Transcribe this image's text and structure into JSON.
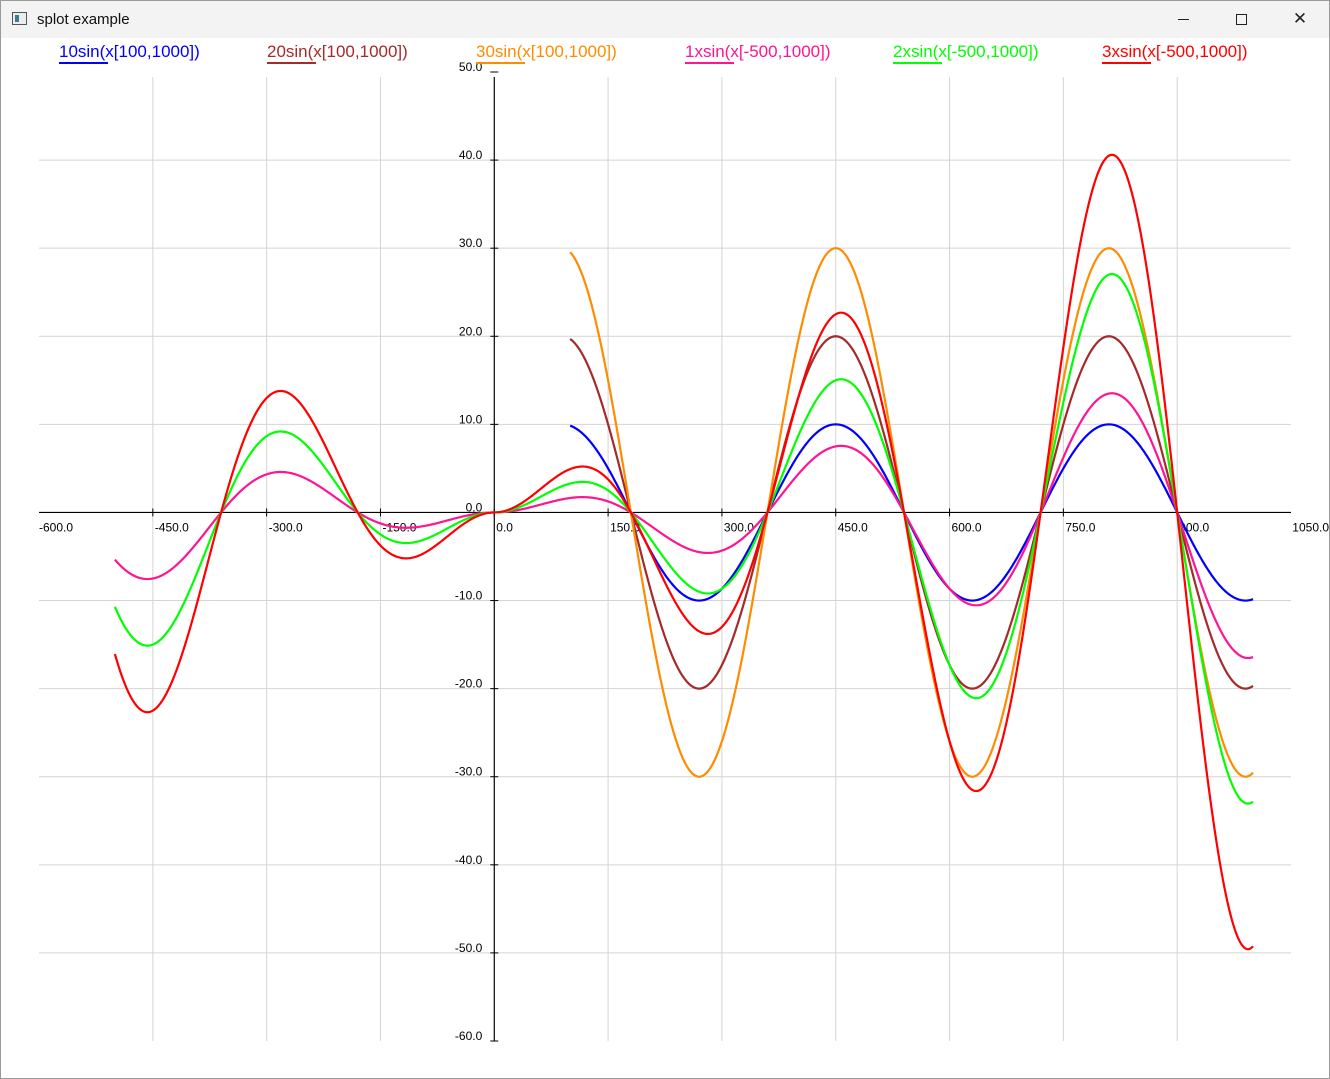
{
  "window": {
    "title": "splot example"
  },
  "controls": {
    "minimize": "minimize",
    "maximize": "maximize",
    "close": "close"
  },
  "chart_data": {
    "type": "line",
    "title": "",
    "xlabel": "",
    "ylabel": "",
    "xlim": [
      -600,
      1050
    ],
    "ylim": [
      -60,
      50
    ],
    "grid": true,
    "legend_position": "top",
    "x_ticks": [
      -600,
      -450,
      -300,
      -150,
      0,
      150,
      300,
      450,
      600,
      750,
      900,
      1050
    ],
    "x_tick_labels": [
      "-600.0",
      "-450.0",
      "-300.0",
      "-150.0",
      "0.0",
      "150.0",
      "300.0",
      "450.0",
      "600.0",
      "750.0",
      "900.0",
      "1050.0"
    ],
    "y_ticks": [
      -60,
      -50,
      -40,
      -30,
      -20,
      -10,
      0,
      10,
      20,
      30,
      40,
      50
    ],
    "y_tick_labels": [
      "-60.0",
      "-50.0",
      "-40.0",
      "-30.0",
      "-20.0",
      "-10.0",
      "0.0",
      "10.0",
      "20.0",
      "30.0",
      "40.0",
      "50.0"
    ],
    "series": [
      {
        "name": "10sin(x[100,1000])",
        "color": "#0000ff",
        "formula": "10*sin(x)",
        "x_range": [
          100,
          1000
        ]
      },
      {
        "name": "20sin(x[100,1000])",
        "color": "#a52a2a",
        "formula": "20*sin(x)",
        "x_range": [
          100,
          1000
        ]
      },
      {
        "name": "30sin(x[100,1000])",
        "color": "#ff8c00",
        "formula": "30*sin(x)",
        "x_range": [
          100,
          1000
        ]
      },
      {
        "name": "1xsin(x[-500,1000])",
        "color": "#ff1493",
        "formula": "(1/60)*|x|*sin(x)",
        "x_range": [
          -500,
          1000
        ]
      },
      {
        "name": "2xsin(x[-500,1000])",
        "color": "#00ff00",
        "formula": "(2/60)*|x|*sin(x)",
        "x_range": [
          -500,
          1000
        ]
      },
      {
        "name": "3xsin(x[-500,1000])",
        "color": "#ff0000",
        "formula": "(3/60)*|x|*sin(x)",
        "x_range": [
          -500,
          1000
        ]
      }
    ]
  }
}
